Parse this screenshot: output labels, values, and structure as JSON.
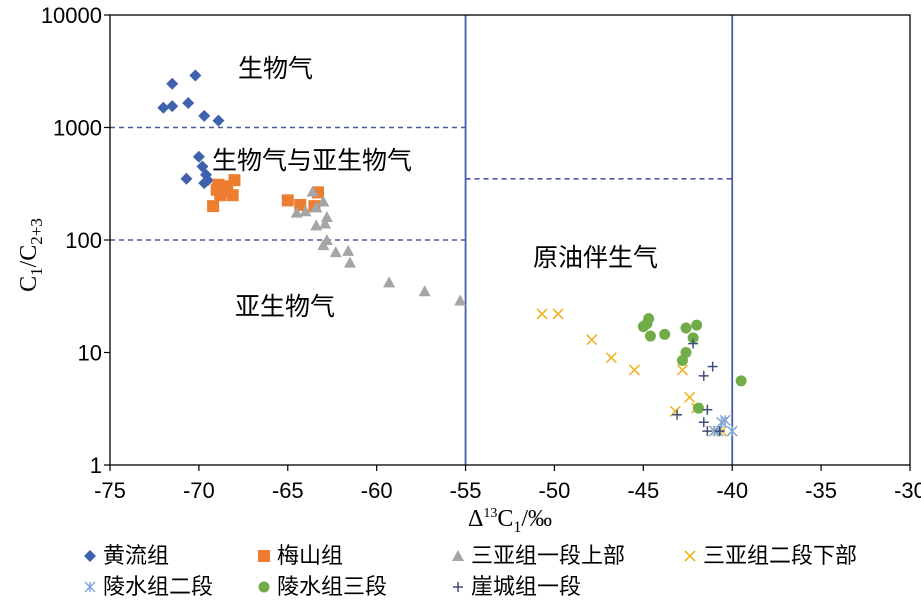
{
  "chart_data": {
    "type": "scatter",
    "x_axis": {
      "label_main": "Δ",
      "label_sup": "13",
      "label_c": "C",
      "label_sub": "1",
      "label_tail": "/‰",
      "range": [
        -75,
        -30
      ],
      "ticks": [
        -75,
        -70,
        -65,
        -60,
        -55,
        -50,
        -45,
        -40,
        -35,
        -30
      ],
      "tick_labels": [
        "-75",
        "-70",
        "-65",
        "-60",
        "-55",
        "-50",
        "-45",
        "-40",
        "-35",
        "-30"
      ]
    },
    "y_axis": {
      "label_c1": "C",
      "label_sub1": "1",
      "label_slash": "/C",
      "label_sub2": "2+3",
      "scale": "log",
      "range": [
        1,
        10000
      ],
      "ticks": [
        1,
        10,
        100,
        1000,
        10000
      ],
      "tick_labels": [
        "1",
        "10",
        "100",
        "1000",
        "10000"
      ]
    },
    "region_labels": {
      "bio": "生物气",
      "bio_sub": "生物气与亚生物气",
      "sub": "亚生物气",
      "crude": "原油伴生气"
    },
    "boundaries": [
      {
        "style": "solid",
        "x": -55,
        "y_from": 1,
        "y_to": 10000
      },
      {
        "style": "solid",
        "x": -40,
        "y_from": 1,
        "y_to": 10000
      },
      {
        "style": "dashed",
        "y": 1000,
        "x_from": -75,
        "x_to": -55
      },
      {
        "style": "dashed",
        "y": 100,
        "x_from": -75,
        "x_to": -55
      },
      {
        "style": "dashed",
        "y": 350,
        "x_from": -55,
        "x_to": -40
      }
    ],
    "line_color": "#4a5aa8",
    "series": [
      {
        "name": "黄流组",
        "marker": "diamond",
        "color": "#4062ad",
        "points": [
          [
            -71.5,
            2450
          ],
          [
            -70.2,
            2900
          ],
          [
            -72,
            1500
          ],
          [
            -71.5,
            1550
          ],
          [
            -70.6,
            1650
          ],
          [
            -69.7,
            1270
          ],
          [
            -68.9,
            1150
          ],
          [
            -70,
            550
          ],
          [
            -69.8,
            450
          ],
          [
            -69.6,
            380
          ],
          [
            -69.5,
            340
          ],
          [
            -69.7,
            320
          ],
          [
            -70.7,
            350
          ]
        ]
      },
      {
        "name": "梅山组",
        "marker": "square",
        "color": "#ed7d31",
        "points": [
          [
            -68.9,
            310
          ],
          [
            -68.4,
            300
          ],
          [
            -68,
            340
          ],
          [
            -69,
            280
          ],
          [
            -68.5,
            270
          ],
          [
            -68.8,
            250
          ],
          [
            -68.1,
            250
          ],
          [
            -69.2,
            200
          ],
          [
            -65,
            225
          ],
          [
            -64.3,
            205
          ],
          [
            -63.5,
            200
          ],
          [
            -63.3,
            265
          ]
        ]
      },
      {
        "name": "三亚组一段上部",
        "marker": "triangle",
        "color": "#a5a5a5",
        "points": [
          [
            -63.6,
            270
          ],
          [
            -63,
            220
          ],
          [
            -64.5,
            175
          ],
          [
            -64,
            180
          ],
          [
            -63.4,
            195
          ],
          [
            -62.8,
            160
          ],
          [
            -63.4,
            135
          ],
          [
            -62.9,
            140
          ],
          [
            -62.8,
            100
          ],
          [
            -63,
            90
          ],
          [
            -62.3,
            78
          ],
          [
            -61.6,
            80
          ],
          [
            -61.5,
            63
          ],
          [
            -59.3,
            42
          ],
          [
            -57.3,
            35
          ],
          [
            -55.3,
            29
          ]
        ]
      },
      {
        "name": "三亚组二段下部",
        "marker": "x",
        "color": "#f0b323",
        "points": [
          [
            -50.7,
            22
          ],
          [
            -49.8,
            22
          ],
          [
            -47.9,
            13
          ],
          [
            -46.8,
            9
          ],
          [
            -45.5,
            7
          ],
          [
            -42.8,
            7
          ],
          [
            -42.4,
            4
          ],
          [
            -42,
            3.2
          ],
          [
            -43.2,
            3
          ],
          [
            -41,
            2
          ],
          [
            -40.6,
            2
          ]
        ]
      },
      {
        "name": "陵水组二段",
        "marker": "xstar",
        "color": "#7fa6d4",
        "points": [
          [
            -40.4,
            2.5
          ],
          [
            -40.6,
            2.4
          ],
          [
            -41,
            2
          ],
          [
            -40.8,
            2
          ],
          [
            -40,
            2
          ]
        ]
      },
      {
        "name": "陵水组三段",
        "marker": "circle",
        "color": "#70ad47",
        "points": [
          [
            -44.7,
            20
          ],
          [
            -44.8,
            18
          ],
          [
            -45,
            17
          ],
          [
            -44.6,
            14
          ],
          [
            -43.8,
            14.5
          ],
          [
            -42.6,
            16.5
          ],
          [
            -42,
            17.5
          ],
          [
            -42.2,
            13.5
          ],
          [
            -42.6,
            10
          ],
          [
            -42.8,
            8.5
          ],
          [
            -39.5,
            5.6
          ],
          [
            -41.9,
            3.2
          ]
        ]
      },
      {
        "name": "崖城组一段",
        "marker": "plus",
        "color": "#404f7a",
        "points": [
          [
            -42.2,
            12
          ],
          [
            -41.1,
            7.5
          ],
          [
            -41.6,
            6.2
          ],
          [
            -41.4,
            3.1
          ],
          [
            -41.6,
            2.4
          ],
          [
            -43.1,
            2.8
          ],
          [
            -41.4,
            2
          ],
          [
            -40.7,
            2
          ]
        ]
      }
    ]
  }
}
